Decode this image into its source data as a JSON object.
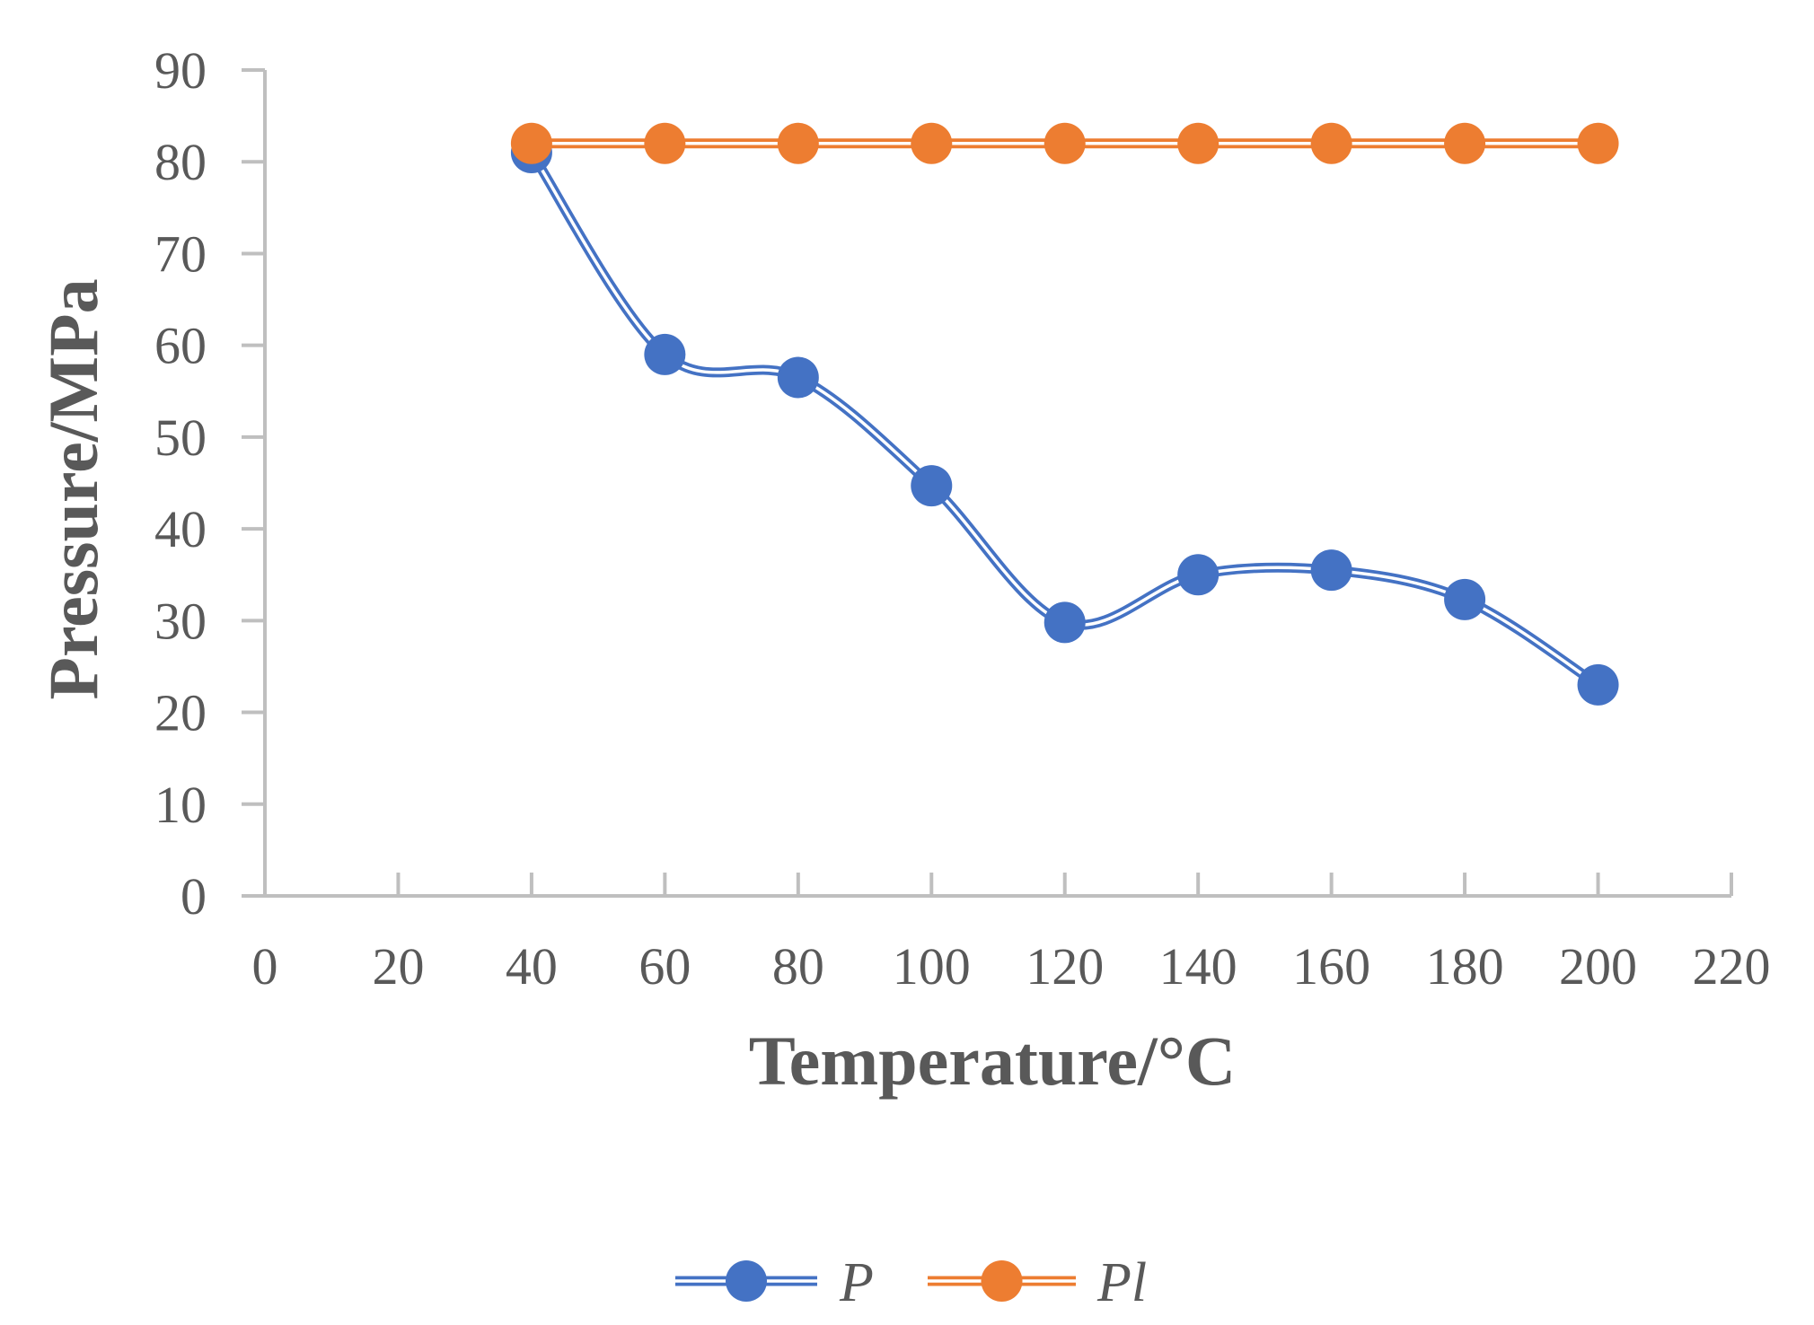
{
  "chart_data": {
    "type": "line",
    "title": "",
    "xlabel": "Temperature/°C",
    "ylabel": "Pressure/MPa",
    "xlim": [
      0,
      220
    ],
    "ylim": [
      0,
      90
    ],
    "x_ticks": [
      0,
      20,
      40,
      60,
      80,
      100,
      120,
      140,
      160,
      180,
      200,
      220
    ],
    "y_ticks": [
      0,
      10,
      20,
      30,
      40,
      50,
      60,
      70,
      80,
      90
    ],
    "grid": false,
    "legend_position": "bottom",
    "series": [
      {
        "name": "P",
        "color": "#4472C4",
        "smooth": true,
        "x": [
          40,
          60,
          80,
          100,
          120,
          140,
          160,
          180,
          200
        ],
        "values": [
          81,
          59,
          56.5,
          44.7,
          29.8,
          35,
          35.5,
          32.3,
          23
        ]
      },
      {
        "name": "Pl",
        "color": "#ED7D31",
        "smooth": true,
        "x": [
          40,
          60,
          80,
          100,
          120,
          140,
          160,
          180,
          200
        ],
        "values": [
          82,
          82,
          82,
          82,
          82,
          82,
          82,
          82,
          82
        ]
      }
    ]
  }
}
